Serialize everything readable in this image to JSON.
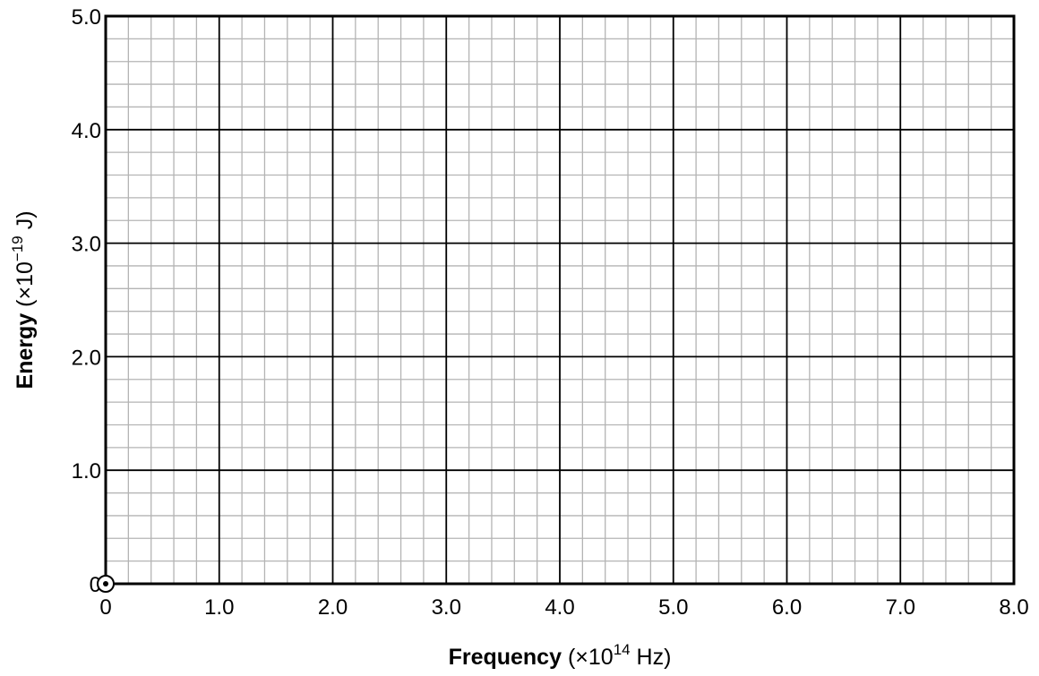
{
  "chart_data": {
    "type": "scatter",
    "title": "",
    "xlabel": {
      "bold": "Frequency",
      "normal": " (×10",
      "sup": "14",
      "tail": " Hz)"
    },
    "ylabel": {
      "bold": "Energy",
      "normal": " (×10",
      "sup": "−19",
      "tail": " J)"
    },
    "xlim": [
      0,
      8
    ],
    "ylim": [
      0,
      5
    ],
    "x_tick_labels": [
      "0",
      "1.0",
      "2.0",
      "3.0",
      "4.0",
      "5.0",
      "6.0",
      "7.0",
      "8.0"
    ],
    "y_tick_labels": [
      "0",
      "1.0",
      "2.0",
      "3.0",
      "4.0",
      "5.0"
    ],
    "grid": true,
    "minor_divisions_per_major": 5,
    "points": [
      {
        "x": 0,
        "y": 0,
        "marker": "circled-dot"
      }
    ]
  }
}
